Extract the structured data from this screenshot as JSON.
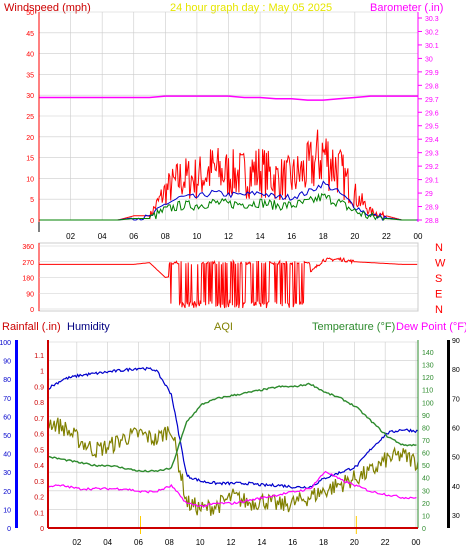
{
  "colors": {
    "windspeed": "#ff0000",
    "gust": "#ff0000",
    "avg_wind": "#0000cc",
    "wind_low": "#008000",
    "barometer": "#ff00ff",
    "direction": "#ff0000",
    "rainfall": "#cc0000",
    "humidity": "#0000cc",
    "aqi": "#808000",
    "temperature": "#2e8b2e",
    "dewpoint": "#ff00ff",
    "grid": "#cccccc",
    "bar_rain": "#0000ff",
    "bar_temp": "#000000",
    "title_color": "#ffff00"
  },
  "top_panel": {
    "title": "24 hour graph day : May 05 2025",
    "left_label": "Windspeed (mph)",
    "right_label": "Barometer (.in)",
    "left_ticks": [
      "0",
      "5",
      "10",
      "15",
      "20",
      "25",
      "30",
      "35",
      "40",
      "45",
      "50"
    ],
    "right_ticks": [
      "28.8",
      "28.9",
      "29",
      "29.1",
      "29.2",
      "29.3",
      "29.4",
      "29.5",
      "29.6",
      "29.7",
      "29.8",
      "29.9",
      "30",
      "30.1",
      "30.2",
      "30.3"
    ],
    "x_ticks": [
      "02",
      "04",
      "06",
      "08",
      "10",
      "12",
      "14",
      "16",
      "18",
      "20",
      "22",
      "00"
    ]
  },
  "direction_panel": {
    "left_ticks": [
      "0",
      "90",
      "180",
      "270",
      "360"
    ],
    "compass": [
      "N",
      "W",
      "S",
      "E",
      "N"
    ]
  },
  "bottom_panel": {
    "labels": {
      "rainfall": "Rainfall (.in)",
      "humidity": "Humidity",
      "aqi": "AQI",
      "temperature": "Temperature (°F)",
      "dewpoint": "Dew Point (°F)"
    },
    "left_outer_ticks": [
      "0",
      "10",
      "20",
      "30",
      "40",
      "50",
      "60",
      "70",
      "80",
      "90",
      "100"
    ],
    "left_inner_ticks": [
      "0",
      "0.1",
      "0.2",
      "0.3",
      "0.4",
      "0.5",
      "0.6",
      "0.7",
      "0.8",
      "0.9",
      "1",
      "1.1"
    ],
    "right_inner_ticks": [
      "0",
      "10",
      "20",
      "30",
      "40",
      "50",
      "60",
      "70",
      "80",
      "90",
      "100",
      "110",
      "120",
      "130",
      "140"
    ],
    "right_outer_ticks": [
      "30",
      "40",
      "50",
      "60",
      "70",
      "80",
      "90"
    ],
    "x_ticks": [
      "02",
      "04",
      "06",
      "08",
      "10",
      "12",
      "14",
      "16",
      "18",
      "20",
      "22",
      "00"
    ]
  },
  "chart_data": [
    {
      "type": "line",
      "title": "24 hour graph day : May 05 2025",
      "xlabel": "",
      "x": [
        "00",
        "01",
        "02",
        "03",
        "04",
        "05",
        "06",
        "07",
        "08",
        "09",
        "10",
        "11",
        "12",
        "13",
        "14",
        "15",
        "16",
        "17",
        "18",
        "19",
        "20",
        "21",
        "22",
        "23",
        "00"
      ],
      "series": [
        {
          "name": "Windspeed (mph)",
          "axis": "left",
          "values": [
            0,
            0,
            0,
            0,
            0,
            0,
            1,
            1,
            7,
            10,
            10,
            12,
            11,
            11,
            12,
            10,
            10,
            12,
            16,
            12,
            6,
            2,
            1,
            0,
            0
          ]
        },
        {
          "name": "Barometer (.in)",
          "axis": "right",
          "values": [
            29.71,
            29.71,
            29.71,
            29.71,
            29.71,
            29.71,
            29.71,
            29.71,
            29.72,
            29.72,
            29.72,
            29.72,
            29.72,
            29.71,
            29.71,
            29.7,
            29.7,
            29.69,
            29.69,
            29.7,
            29.71,
            29.72,
            29.72,
            29.72,
            29.72
          ]
        }
      ],
      "ylim_left": [
        0,
        50
      ],
      "ylim_right": [
        28.8,
        30.3
      ]
    },
    {
      "type": "scatter",
      "xlabel": "",
      "x": [
        "00",
        "01",
        "02",
        "03",
        "04",
        "05",
        "06",
        "07",
        "08",
        "09",
        "10",
        "11",
        "12",
        "13",
        "14",
        "15",
        "16",
        "17",
        "18",
        "19",
        "20",
        "21",
        "22",
        "23",
        "00"
      ],
      "series": [
        {
          "name": "Wind direction",
          "values": [
            255,
            255,
            255,
            255,
            255,
            255,
            255,
            265,
            180,
            200,
            150,
            170,
            200,
            160,
            150,
            180,
            190,
            190,
            280,
            285,
            270,
            265,
            260,
            255,
            255
          ]
        }
      ],
      "ylim": [
        0,
        360
      ]
    },
    {
      "type": "line",
      "xlabel": "",
      "x": [
        "00",
        "01",
        "02",
        "03",
        "04",
        "05",
        "06",
        "07",
        "08",
        "09",
        "10",
        "11",
        "12",
        "13",
        "14",
        "15",
        "16",
        "17",
        "18",
        "19",
        "20",
        "21",
        "22",
        "23",
        "00"
      ],
      "series": [
        {
          "name": "Rainfall (.in)",
          "axis": "left-inner",
          "values": [
            0,
            0,
            0,
            0,
            0,
            0,
            0,
            0,
            0,
            0,
            0,
            0,
            0,
            0,
            0,
            0,
            0,
            0,
            0,
            0,
            0,
            0,
            0,
            0,
            0
          ]
        },
        {
          "name": "Humidity",
          "axis": "left-outer",
          "values": [
            75,
            80,
            82,
            83,
            84,
            85,
            86,
            85,
            72,
            28,
            25,
            24,
            24,
            24,
            23,
            23,
            22,
            22,
            27,
            30,
            33,
            43,
            51,
            53,
            52
          ]
        },
        {
          "name": "AQI",
          "axis": "right-inner",
          "values": [
            85,
            80,
            70,
            62,
            65,
            72,
            75,
            70,
            80,
            20,
            15,
            18,
            25,
            20,
            22,
            18,
            20,
            25,
            30,
            35,
            40,
            45,
            55,
            58,
            52
          ]
        },
        {
          "name": "Temperature (°F)",
          "axis": "right-outer",
          "values": [
            50,
            49,
            48,
            47,
            47,
            46,
            45,
            45,
            46,
            62,
            68,
            70,
            71,
            72,
            73,
            74,
            74,
            75,
            72,
            70,
            67,
            62,
            57,
            54,
            54
          ]
        },
        {
          "name": "Dew Point (°F)",
          "axis": "right-outer",
          "values": [
            40,
            40,
            39,
            39,
            39,
            39,
            38,
            38,
            40,
            34,
            33,
            34,
            34,
            35,
            36,
            37,
            38,
            39,
            45,
            42,
            40,
            38,
            37,
            36,
            36
          ]
        }
      ],
      "ylim_left_outer": [
        0,
        100
      ],
      "ylim_left_inner": [
        0,
        1.1
      ],
      "ylim_right_inner": [
        0,
        140
      ],
      "ylim_right_outer": [
        30,
        90
      ]
    }
  ]
}
